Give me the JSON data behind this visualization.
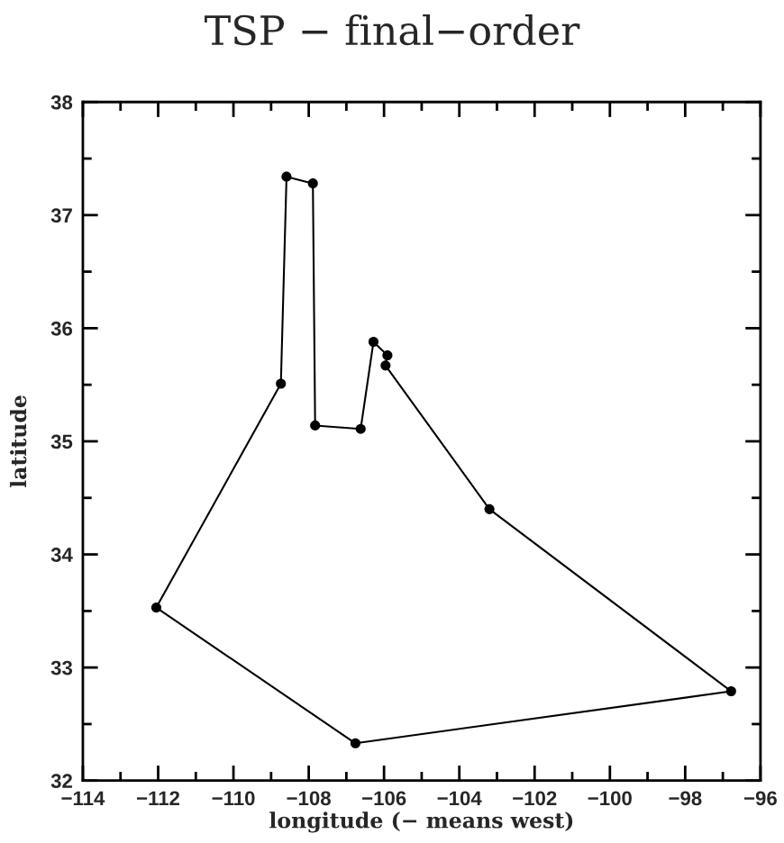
{
  "chart_data": {
    "type": "line",
    "title": "TSP − final−order",
    "xlabel": "longitude (− means west)",
    "ylabel": "latitude",
    "series": [
      {
        "color": "#000000",
        "x": [
          -112.05,
          -108.74,
          -108.59,
          -107.89,
          -107.83,
          -106.62,
          -106.28,
          -105.91
        ],
        "values": [
          33.53,
          35.51,
          37.34,
          37.28,
          35.14,
          35.11,
          35.88,
          35.76
        ]
      },
      {
        "color": "#000000",
        "x": [
          -105.96,
          -105.91
        ],
        "values": [
          35.67,
          35.76
        ]
      },
      {
        "color": "#000000",
        "x": [
          -105.96,
          -103.2,
          -96.78
        ],
        "values": [
          35.67,
          34.4,
          32.79
        ]
      },
      {
        "color": "#000000",
        "x": [
          -112.05,
          -106.76,
          -96.78
        ],
        "values": [
          33.53,
          32.33,
          32.79
        ]
      },
      {
        "type": "scatter",
        "marker": "circle",
        "color": "#000000",
        "x": [
          -112.05,
          -108.74,
          -108.59,
          -107.89,
          -107.83,
          -106.62,
          -106.28,
          -105.91,
          -105.96,
          -103.2,
          -96.78,
          -106.76
        ],
        "values": [
          33.53,
          35.51,
          37.34,
          37.28,
          35.14,
          35.11,
          35.88,
          35.76,
          35.67,
          34.4,
          32.79,
          32.33
        ]
      }
    ],
    "xlim": [
      -114,
      -96
    ],
    "xticks": [
      {
        "value": -114,
        "label": "−114"
      },
      {
        "value": -113,
        "label": null
      },
      {
        "value": -112,
        "label": "−112"
      },
      {
        "value": -111,
        "label": null
      },
      {
        "value": -110,
        "label": "−110"
      },
      {
        "value": -109,
        "label": null
      },
      {
        "value": -108,
        "label": "−108"
      },
      {
        "value": -107,
        "label": null
      },
      {
        "value": -106,
        "label": "−106"
      },
      {
        "value": -105,
        "label": null
      },
      {
        "value": -104,
        "label": "−104"
      },
      {
        "value": -103,
        "label": null
      },
      {
        "value": -102,
        "label": "−102"
      },
      {
        "value": -101,
        "label": null
      },
      {
        "value": -100,
        "label": "−100"
      },
      {
        "value": -99,
        "label": null
      },
      {
        "value": -98,
        "label": "−98"
      },
      {
        "value": -97,
        "label": null
      },
      {
        "value": -96,
        "label": "−96"
      }
    ],
    "ylim": [
      32,
      38
    ],
    "yticks": [
      32,
      {
        "value": 32.5,
        "label": null
      },
      33,
      {
        "value": 33.5,
        "label": null
      },
      34,
      {
        "value": 34.5,
        "label": null
      },
      35,
      {
        "value": 35.5,
        "label": null
      },
      36,
      {
        "value": 36.5,
        "label": null
      },
      37,
      {
        "value": 37.5,
        "label": null
      },
      38
    ],
    "line_style": "solid"
  }
}
